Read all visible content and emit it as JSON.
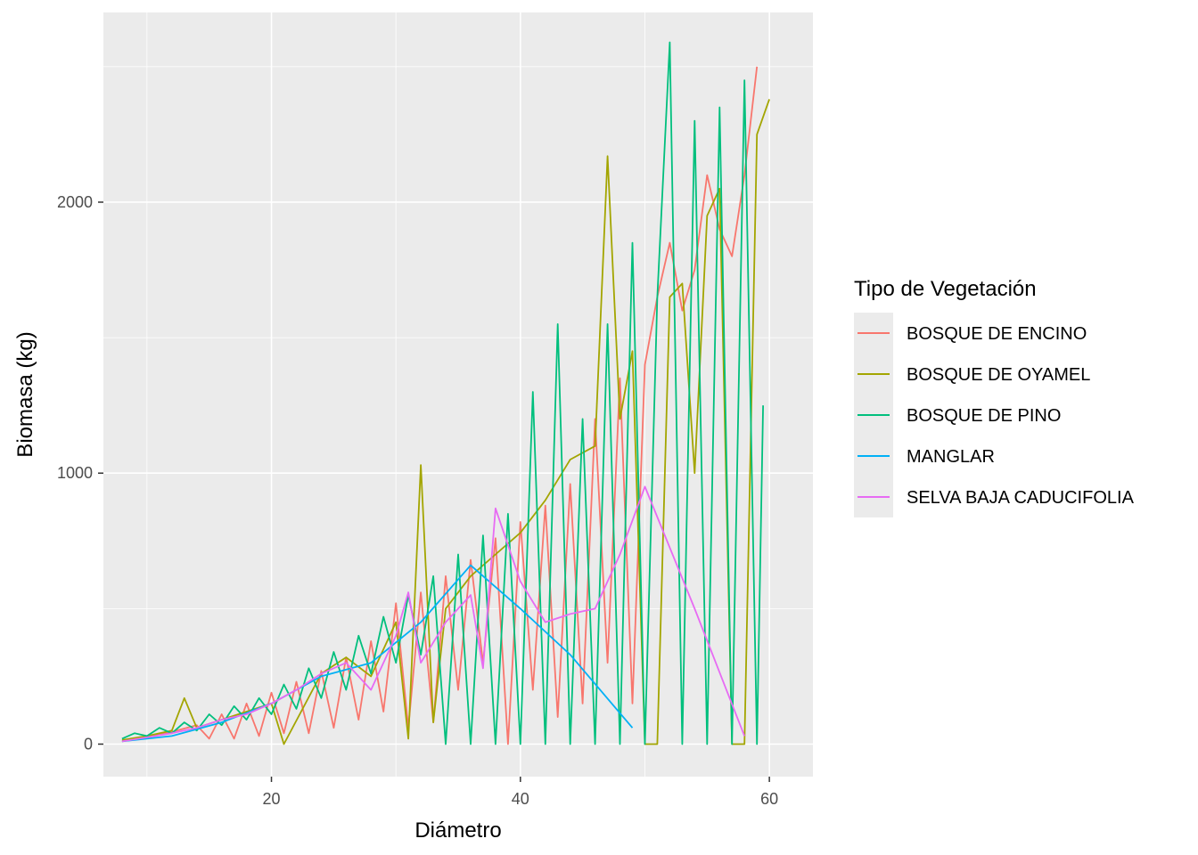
{
  "chart_data": {
    "type": "line",
    "title": "",
    "xlabel": "Diámetro",
    "ylabel": "Biomasa (kg)",
    "xlim": [
      6.5,
      63.5
    ],
    "ylim": [
      -120,
      2700
    ],
    "x_ticks": [
      20,
      40,
      60
    ],
    "y_ticks": [
      0,
      1000,
      2000
    ],
    "grid": true,
    "legend": {
      "title": "Tipo de Vegetación",
      "placement": "right"
    },
    "series": [
      {
        "name": "BOSQUE DE ENCINO",
        "color": "#F8766D",
        "points": [
          [
            8,
            10
          ],
          [
            10,
            25
          ],
          [
            12,
            45
          ],
          [
            14,
            70
          ],
          [
            15,
            20
          ],
          [
            16,
            110
          ],
          [
            17,
            20
          ],
          [
            18,
            150
          ],
          [
            19,
            30
          ],
          [
            20,
            190
          ],
          [
            21,
            40
          ],
          [
            22,
            230
          ],
          [
            23,
            40
          ],
          [
            24,
            270
          ],
          [
            25,
            60
          ],
          [
            26,
            320
          ],
          [
            27,
            90
          ],
          [
            28,
            380
          ],
          [
            29,
            120
          ],
          [
            30,
            520
          ],
          [
            31,
            60
          ],
          [
            32,
            560
          ],
          [
            33,
            80
          ],
          [
            34,
            620
          ],
          [
            35,
            200
          ],
          [
            36,
            680
          ],
          [
            37,
            300
          ],
          [
            38,
            760
          ],
          [
            39,
            0
          ],
          [
            40,
            820
          ],
          [
            41,
            200
          ],
          [
            42,
            880
          ],
          [
            43,
            100
          ],
          [
            44,
            960
          ],
          [
            45,
            150
          ],
          [
            46,
            1200
          ],
          [
            47,
            300
          ],
          [
            48,
            1350
          ],
          [
            49,
            150
          ],
          [
            50,
            1400
          ],
          [
            51,
            1650
          ],
          [
            52,
            1850
          ],
          [
            53,
            1600
          ],
          [
            54,
            1750
          ],
          [
            55,
            2100
          ],
          [
            56,
            1900
          ],
          [
            57,
            1800
          ],
          [
            58,
            2100
          ],
          [
            59,
            2500
          ]
        ]
      },
      {
        "name": "BOSQUE DE OYAMEL",
        "color": "#A3A500",
        "points": [
          [
            8,
            15
          ],
          [
            10,
            30
          ],
          [
            12,
            50
          ],
          [
            13,
            170
          ],
          [
            14,
            60
          ],
          [
            16,
            90
          ],
          [
            18,
            120
          ],
          [
            20,
            150
          ],
          [
            21,
            0
          ],
          [
            24,
            260
          ],
          [
            26,
            320
          ],
          [
            28,
            250
          ],
          [
            30,
            450
          ],
          [
            31,
            20
          ],
          [
            32,
            1030
          ],
          [
            33,
            80
          ],
          [
            34,
            500
          ],
          [
            36,
            620
          ],
          [
            38,
            700
          ],
          [
            40,
            780
          ],
          [
            42,
            900
          ],
          [
            44,
            1050
          ],
          [
            46,
            1100
          ],
          [
            47,
            2170
          ],
          [
            48,
            1200
          ],
          [
            49,
            1450
          ],
          [
            50,
            0
          ],
          [
            51,
            0
          ],
          [
            52,
            1650
          ],
          [
            53,
            1700
          ],
          [
            54,
            1000
          ],
          [
            55,
            1950
          ],
          [
            56,
            2050
          ],
          [
            57,
            0
          ],
          [
            58,
            0
          ],
          [
            59,
            2250
          ],
          [
            60,
            2380
          ]
        ]
      },
      {
        "name": "BOSQUE DE PINO",
        "color": "#00BF7D",
        "points": [
          [
            8,
            20
          ],
          [
            9,
            40
          ],
          [
            10,
            30
          ],
          [
            11,
            60
          ],
          [
            12,
            40
          ],
          [
            13,
            80
          ],
          [
            14,
            50
          ],
          [
            15,
            110
          ],
          [
            16,
            70
          ],
          [
            17,
            140
          ],
          [
            18,
            90
          ],
          [
            19,
            170
          ],
          [
            20,
            110
          ],
          [
            21,
            220
          ],
          [
            22,
            130
          ],
          [
            23,
            280
          ],
          [
            24,
            170
          ],
          [
            25,
            340
          ],
          [
            26,
            200
          ],
          [
            27,
            400
          ],
          [
            28,
            260
          ],
          [
            29,
            470
          ],
          [
            30,
            300
          ],
          [
            31,
            550
          ],
          [
            32,
            330
          ],
          [
            33,
            620
          ],
          [
            34,
            0
          ],
          [
            35,
            700
          ],
          [
            36,
            0
          ],
          [
            37,
            770
          ],
          [
            38,
            0
          ],
          [
            39,
            850
          ],
          [
            40,
            0
          ],
          [
            41,
            1300
          ],
          [
            42,
            0
          ],
          [
            43,
            1550
          ],
          [
            44,
            0
          ],
          [
            45,
            1200
          ],
          [
            46,
            0
          ],
          [
            47,
            1550
          ],
          [
            48,
            0
          ],
          [
            49,
            1850
          ],
          [
            50,
            0
          ],
          [
            51,
            1650
          ],
          [
            52,
            2590
          ],
          [
            53,
            0
          ],
          [
            54,
            2300
          ],
          [
            55,
            0
          ],
          [
            56,
            2350
          ],
          [
            57,
            0
          ],
          [
            58,
            2450
          ],
          [
            59,
            0
          ],
          [
            59.5,
            1250
          ]
        ]
      },
      {
        "name": "MANGLAR",
        "color": "#00B0F6",
        "points": [
          [
            8,
            10
          ],
          [
            12,
            30
          ],
          [
            16,
            80
          ],
          [
            20,
            150
          ],
          [
            24,
            250
          ],
          [
            28,
            300
          ],
          [
            32,
            450
          ],
          [
            36,
            660
          ],
          [
            40,
            500
          ],
          [
            44,
            330
          ],
          [
            49,
            60
          ]
        ]
      },
      {
        "name": "SELVA BAJA CADUCIFOLIA",
        "color": "#E76BF3",
        "points": [
          [
            8,
            10
          ],
          [
            10,
            25
          ],
          [
            12,
            40
          ],
          [
            14,
            60
          ],
          [
            16,
            90
          ],
          [
            18,
            110
          ],
          [
            20,
            150
          ],
          [
            22,
            200
          ],
          [
            24,
            260
          ],
          [
            26,
            300
          ],
          [
            28,
            200
          ],
          [
            30,
            400
          ],
          [
            31,
            560
          ],
          [
            32,
            300
          ],
          [
            34,
            450
          ],
          [
            36,
            550
          ],
          [
            37,
            280
          ],
          [
            38,
            870
          ],
          [
            40,
            600
          ],
          [
            42,
            450
          ],
          [
            44,
            480
          ],
          [
            46,
            500
          ],
          [
            48,
            700
          ],
          [
            50,
            950
          ],
          [
            54,
            500
          ],
          [
            58,
            30
          ]
        ]
      }
    ]
  }
}
